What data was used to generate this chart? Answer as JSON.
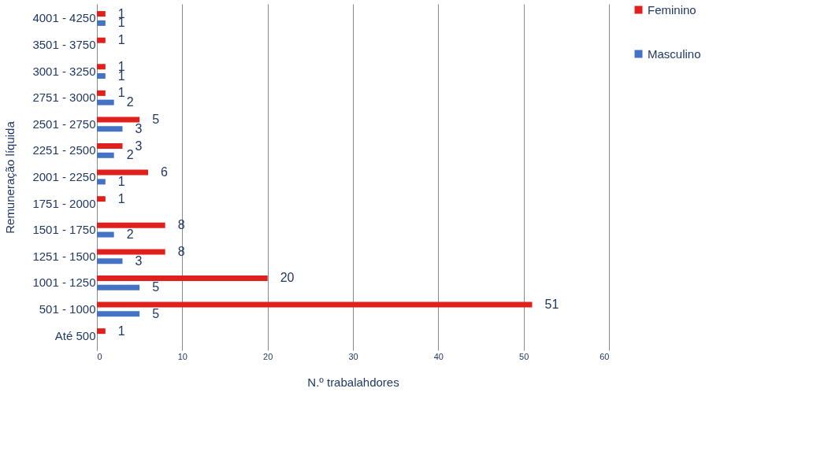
{
  "chart_data": {
    "type": "bar",
    "orientation": "horizontal",
    "xlabel": "N.º trabalahdores",
    "ylabel": "Remuneração líquida",
    "categories": [
      "4001 - 4250",
      "3501 - 3750",
      "3001 - 3250",
      "2751 - 3000",
      "2501 - 2750",
      "2251 - 2500",
      "2001 - 2250",
      "1751 - 2000",
      "1501 - 1750",
      "1251 - 1500",
      "1001 - 1250",
      "501 - 1000",
      "Até 500"
    ],
    "series": [
      {
        "name": "Feminino",
        "color": "#e0201c",
        "values": [
          1,
          1,
          1,
          1,
          5,
          3,
          6,
          1,
          8,
          8,
          20,
          51,
          1
        ]
      },
      {
        "name": "Masculino",
        "color": "#4472c4",
        "values": [
          1,
          null,
          1,
          2,
          3,
          2,
          1,
          null,
          2,
          3,
          5,
          5,
          null
        ]
      }
    ],
    "xlim": [
      0,
      60
    ],
    "xticks": [
      0,
      10,
      20,
      30,
      40,
      50,
      60
    ],
    "grid": "x",
    "legend": "right",
    "data_labels": true
  }
}
